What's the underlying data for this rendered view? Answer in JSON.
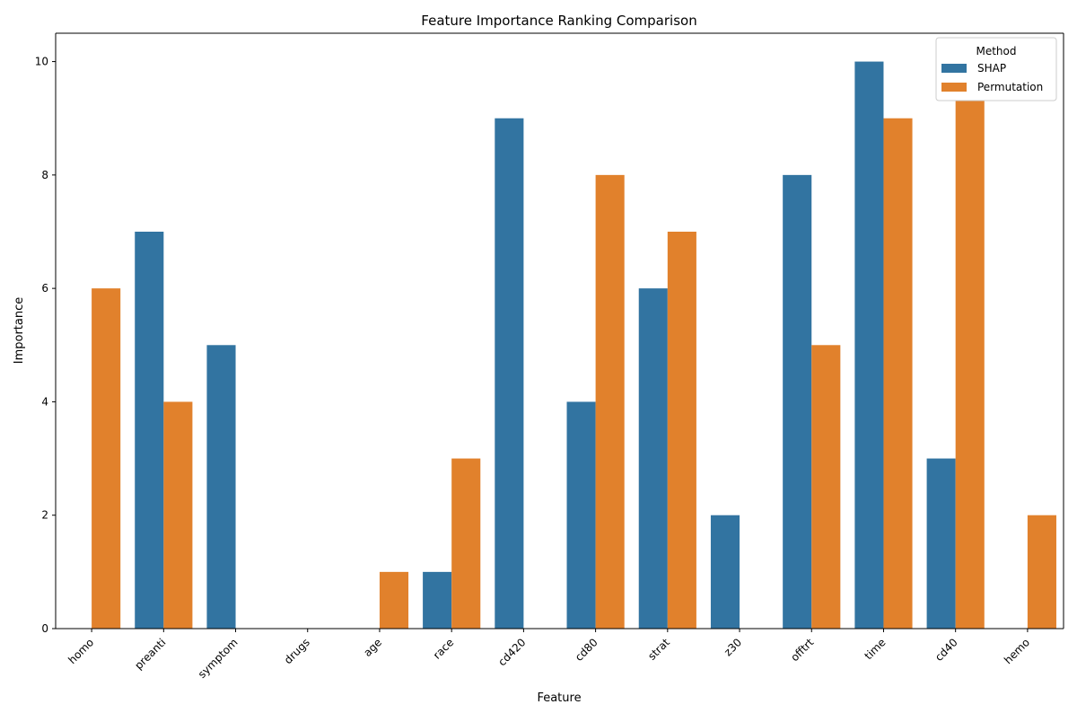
{
  "chart_data": {
    "type": "bar",
    "title": "Feature Importance Ranking Comparison",
    "xlabel": "Feature",
    "ylabel": "Importance",
    "ylim": [
      0,
      10.5
    ],
    "yticks": [
      0,
      2,
      4,
      6,
      8,
      10
    ],
    "grid": false,
    "legend": {
      "title": "Method",
      "placement": "top-right"
    },
    "categories": [
      "homo",
      "preanti",
      "symptom",
      "drugs",
      "age",
      "race",
      "cd420",
      "cd80",
      "strat",
      "z30",
      "offtrt",
      "time",
      "cd40",
      "hemo"
    ],
    "series": [
      {
        "name": "SHAP",
        "color": "#3274a1",
        "values": [
          0,
          7,
          5,
          0,
          0,
          1,
          9,
          4,
          6,
          2,
          8,
          10,
          3,
          0
        ]
      },
      {
        "name": "Permutation",
        "color": "#e1812c",
        "values": [
          6,
          4,
          0,
          0,
          1,
          3,
          0,
          8,
          7,
          0,
          5,
          9,
          10,
          2
        ]
      }
    ]
  }
}
